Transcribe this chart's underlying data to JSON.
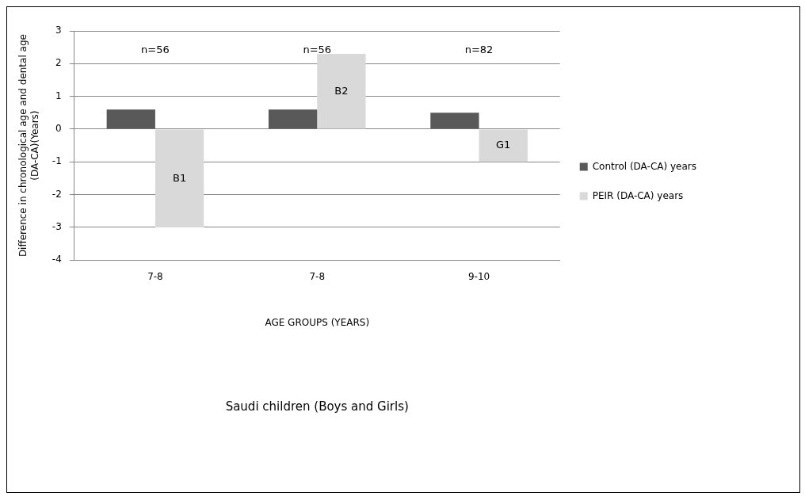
{
  "chart_data": {
    "type": "bar",
    "xlabel": "AGE GROUPS (YEARS)",
    "ylabel": "Difference in chronological age and dental age\n(DA-CA)(Years)",
    "categories": [
      "7-8",
      "7-8",
      "9-10"
    ],
    "series": [
      {
        "name": "Control (DA-CA) years",
        "color": "#595959",
        "values": [
          0.6,
          0.6,
          0.5
        ]
      },
      {
        "name": "PEIR (DA-CA) years",
        "color": "#d9d9d9",
        "values": [
          -3,
          2.3,
          -1
        ],
        "value_labels": [
          "B1",
          "B2",
          "G1"
        ]
      }
    ],
    "ylim": [
      -4,
      3
    ],
    "yticks": [
      -4,
      -3,
      -2,
      -1,
      0,
      1,
      2,
      3
    ],
    "grid": "y",
    "legend": "right",
    "annotations": [
      "n=56",
      "n=56",
      "n=82",
      "Saudi children (Boys and Girls)"
    ]
  }
}
